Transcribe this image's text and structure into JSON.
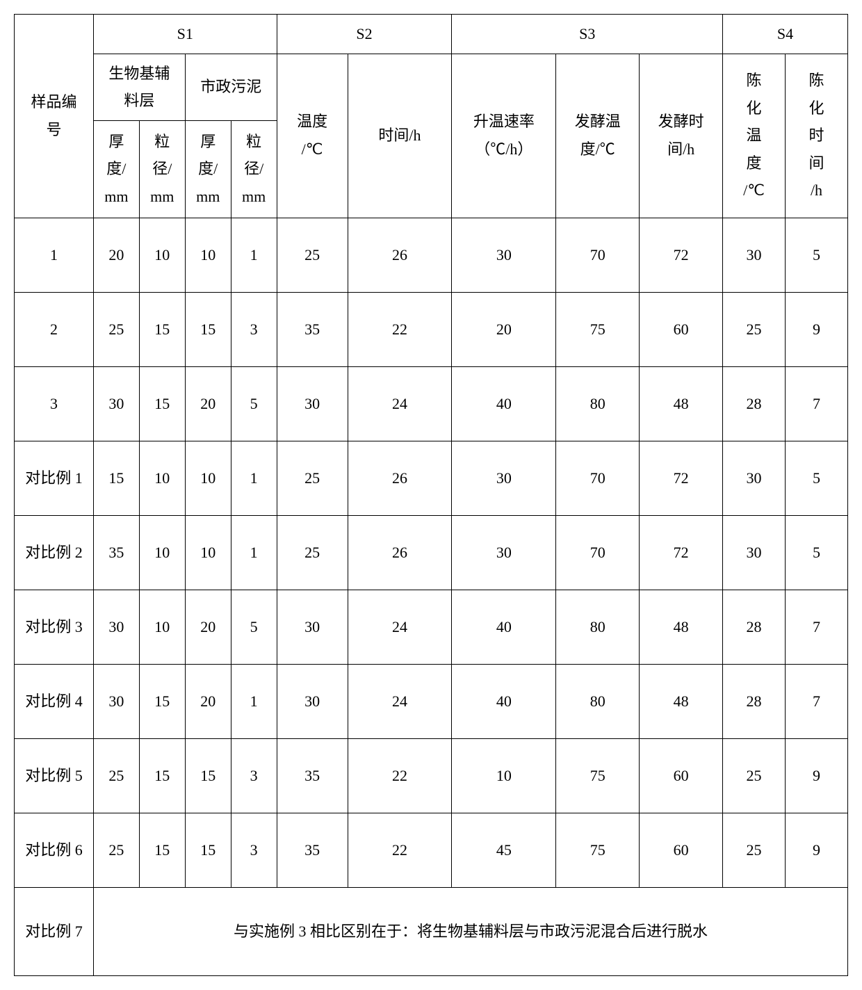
{
  "header": {
    "sample_no": "样品编\n号",
    "s1": "S1",
    "s2": "S2",
    "s3": "S3",
    "s4": "S4",
    "bio_layer": "生物基辅\n料层",
    "muni_sludge": "市政污泥",
    "thickness_mm": "厚\n度/\nmm",
    "particle_mm": "粒\n径/\nmm",
    "temp_c": "温度\n/℃",
    "time_h": "时间/h",
    "heat_rate": "升温速率\n（℃/h）",
    "ferment_temp": "发酵温\n度/℃",
    "ferment_time": "发酵时\n间/h",
    "age_temp": "陈\n化\n温\n度\n/℃",
    "age_time": "陈\n化\n时\n间\n/h"
  },
  "rows": [
    {
      "id": "1",
      "a": "20",
      "b": "10",
      "c": "10",
      "d": "1",
      "e": "25",
      "f": "26",
      "g": "30",
      "h": "70",
      "i": "72",
      "j": "30",
      "k": "5"
    },
    {
      "id": "2",
      "a": "25",
      "b": "15",
      "c": "15",
      "d": "3",
      "e": "35",
      "f": "22",
      "g": "20",
      "h": "75",
      "i": "60",
      "j": "25",
      "k": "9"
    },
    {
      "id": "3",
      "a": "30",
      "b": "15",
      "c": "20",
      "d": "5",
      "e": "30",
      "f": "24",
      "g": "40",
      "h": "80",
      "i": "48",
      "j": "28",
      "k": "7"
    },
    {
      "id": "对比例 1",
      "a": "15",
      "b": "10",
      "c": "10",
      "d": "1",
      "e": "25",
      "f": "26",
      "g": "30",
      "h": "70",
      "i": "72",
      "j": "30",
      "k": "5"
    },
    {
      "id": "对比例 2",
      "a": "35",
      "b": "10",
      "c": "10",
      "d": "1",
      "e": "25",
      "f": "26",
      "g": "30",
      "h": "70",
      "i": "72",
      "j": "30",
      "k": "5"
    },
    {
      "id": "对比例 3",
      "a": "30",
      "b": "10",
      "c": "20",
      "d": "5",
      "e": "30",
      "f": "24",
      "g": "40",
      "h": "80",
      "i": "48",
      "j": "28",
      "k": "7"
    },
    {
      "id": "对比例 4",
      "a": "30",
      "b": "15",
      "c": "20",
      "d": "1",
      "e": "30",
      "f": "24",
      "g": "40",
      "h": "80",
      "i": "48",
      "j": "28",
      "k": "7"
    },
    {
      "id": "对比例 5",
      "a": "25",
      "b": "15",
      "c": "15",
      "d": "3",
      "e": "35",
      "f": "22",
      "g": "10",
      "h": "75",
      "i": "60",
      "j": "25",
      "k": "9"
    },
    {
      "id": "对比例 6",
      "a": "25",
      "b": "15",
      "c": "15",
      "d": "3",
      "e": "35",
      "f": "22",
      "g": "45",
      "h": "75",
      "i": "60",
      "j": "25",
      "k": "9"
    }
  ],
  "last_row": {
    "id": "对比例 7",
    "note": "与实施例 3 相比区别在于：将生物基辅料层与市政污泥混合后进行脱水"
  },
  "col_widths": {
    "c0": "9.5%",
    "c1": "5.5%",
    "c2": "5.5%",
    "c3": "5.5%",
    "c4": "5.5%",
    "c5": "8.5%",
    "c6": "12.5%",
    "c7": "12.5%",
    "c8": "10%",
    "c9": "10%",
    "c10": "7.5%",
    "c11": "7.5%"
  }
}
